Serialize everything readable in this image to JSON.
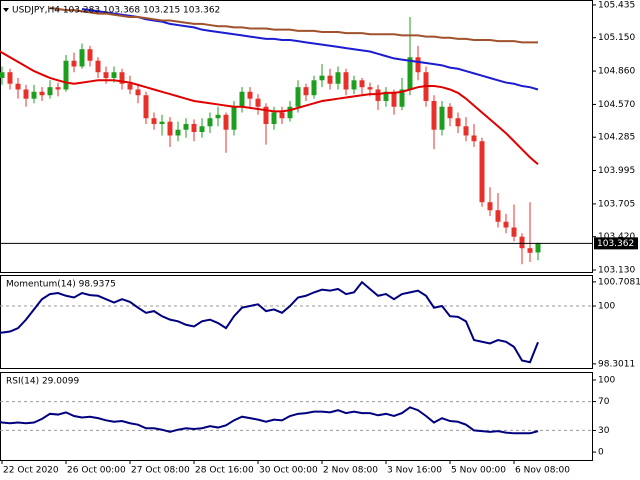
{
  "chart_data": [
    {
      "type": "candlestick",
      "title": "USDJPY,H4  103.283 103.368 103.215 103.362",
      "up_color": "#1e9e1e",
      "down_color": "#e8302a",
      "open": [
        104.55,
        104.72,
        104.8,
        104.85,
        104.75,
        104.7,
        104.62,
        104.68,
        104.65,
        104.72,
        104.7,
        104.95,
        104.9,
        105.05,
        104.95,
        104.85,
        104.8,
        104.85,
        104.75,
        104.7,
        104.65,
        104.45,
        104.4,
        104.42,
        104.3,
        104.35,
        104.4,
        104.33,
        104.38,
        104.45,
        104.48,
        104.35,
        104.55,
        104.68,
        104.62,
        104.55,
        104.4,
        104.5,
        104.45,
        104.55,
        104.72,
        104.65,
        104.78,
        104.82,
        104.75,
        104.85,
        104.7,
        104.78,
        104.72,
        104.7,
        104.6,
        104.68,
        104.55,
        104.7,
        104.98,
        104.85,
        104.6,
        104.35,
        104.55,
        104.45,
        104.38,
        104.3,
        104.25,
        103.72,
        103.65,
        103.55,
        103.5,
        103.42,
        103.32,
        103.283
      ],
      "high": [
        104.8,
        104.88,
        104.9,
        104.88,
        104.8,
        104.74,
        104.74,
        104.72,
        104.78,
        104.76,
        105.0,
        105.02,
        105.1,
        105.08,
        104.98,
        104.9,
        104.9,
        104.88,
        104.82,
        104.74,
        104.68,
        104.5,
        104.48,
        104.46,
        104.42,
        104.45,
        104.44,
        104.45,
        104.5,
        104.55,
        104.5,
        104.6,
        104.72,
        104.72,
        104.66,
        104.58,
        104.55,
        104.55,
        104.6,
        104.78,
        104.75,
        104.82,
        104.92,
        104.88,
        104.9,
        104.88,
        104.82,
        104.8,
        104.76,
        104.74,
        104.72,
        104.7,
        104.8,
        105.33,
        105.08,
        104.9,
        104.65,
        104.6,
        104.58,
        104.5,
        104.46,
        104.4,
        104.28,
        103.85,
        103.8,
        103.62,
        103.7,
        103.45,
        103.72,
        103.368
      ],
      "low": [
        104.5,
        104.68,
        104.74,
        104.7,
        104.62,
        104.55,
        104.58,
        104.6,
        104.62,
        104.64,
        104.68,
        104.85,
        104.88,
        104.9,
        104.8,
        104.75,
        104.76,
        104.7,
        104.66,
        104.58,
        104.4,
        104.35,
        104.3,
        104.2,
        104.25,
        104.28,
        104.25,
        104.28,
        104.32,
        104.38,
        104.15,
        104.3,
        104.5,
        104.55,
        104.48,
        104.22,
        104.35,
        104.4,
        104.42,
        104.5,
        104.6,
        104.62,
        104.72,
        104.7,
        104.7,
        104.65,
        104.66,
        104.66,
        104.64,
        104.52,
        104.55,
        104.48,
        104.52,
        104.65,
        104.78,
        104.55,
        104.18,
        104.3,
        104.38,
        104.32,
        104.25,
        104.2,
        103.68,
        103.6,
        103.5,
        103.45,
        103.38,
        103.18,
        103.2,
        103.215
      ],
      "close": [
        104.72,
        104.8,
        104.85,
        104.75,
        104.7,
        104.62,
        104.68,
        104.65,
        104.72,
        104.7,
        104.95,
        104.9,
        105.05,
        104.95,
        104.85,
        104.8,
        104.85,
        104.75,
        104.7,
        104.65,
        104.45,
        104.4,
        104.42,
        104.3,
        104.35,
        104.4,
        104.33,
        104.38,
        104.45,
        104.48,
        104.35,
        104.55,
        104.68,
        104.62,
        104.55,
        104.4,
        104.5,
        104.45,
        104.55,
        104.72,
        104.65,
        104.78,
        104.82,
        104.75,
        104.85,
        104.7,
        104.78,
        104.72,
        104.7,
        104.6,
        104.68,
        104.55,
        104.7,
        104.98,
        104.85,
        104.6,
        104.35,
        104.55,
        104.45,
        104.38,
        104.3,
        104.25,
        103.72,
        103.65,
        103.55,
        103.5,
        103.42,
        103.32,
        103.28,
        103.362
      ],
      "series": [
        {
          "color": "#e00000",
          "values": [
            105.1,
            105.06,
            105.02,
            104.98,
            104.94,
            104.9,
            104.86,
            104.83,
            104.8,
            104.78,
            104.76,
            104.75,
            104.76,
            104.77,
            104.78,
            104.78,
            104.78,
            104.77,
            104.76,
            104.74,
            104.72,
            104.7,
            104.68,
            104.66,
            104.64,
            104.62,
            104.6,
            104.59,
            104.58,
            104.57,
            104.56,
            104.55,
            104.55,
            104.54,
            104.53,
            104.52,
            104.51,
            104.51,
            104.52,
            104.54,
            104.56,
            104.58,
            104.6,
            104.61,
            104.62,
            104.63,
            104.64,
            104.65,
            104.66,
            104.66,
            104.67,
            104.67,
            104.68,
            104.7,
            104.72,
            104.73,
            104.73,
            104.72,
            104.7,
            104.67,
            104.62,
            104.56,
            104.5,
            104.44,
            104.38,
            104.32,
            104.25,
            104.18,
            104.11,
            104.05
          ]
        },
        {
          "color": "#1c1cd0",
          "values": [
            null,
            null,
            null,
            null,
            null,
            null,
            null,
            null,
            null,
            null,
            null,
            null,
            105.4,
            105.39,
            105.38,
            105.37,
            105.36,
            105.35,
            105.34,
            105.33,
            105.31,
            105.3,
            105.29,
            105.27,
            105.26,
            105.25,
            105.24,
            105.22,
            105.21,
            105.2,
            105.19,
            105.18,
            105.17,
            105.16,
            105.15,
            105.14,
            105.14,
            105.13,
            105.13,
            105.12,
            105.11,
            105.1,
            105.09,
            105.08,
            105.07,
            105.06,
            105.05,
            105.04,
            105.03,
            105.01,
            104.99,
            104.97,
            104.96,
            104.95,
            104.94,
            104.93,
            104.92,
            104.91,
            104.89,
            104.88,
            104.86,
            104.84,
            104.82,
            104.8,
            104.78,
            104.76,
            104.75,
            104.73,
            104.72,
            104.7
          ]
        },
        {
          "color": "#a0522d",
          "values": [
            null,
            null,
            null,
            null,
            null,
            null,
            null,
            null,
            105.41,
            105.4,
            105.39,
            105.39,
            105.38,
            105.37,
            105.36,
            105.36,
            105.35,
            105.34,
            105.33,
            105.33,
            105.32,
            105.31,
            105.3,
            105.3,
            105.29,
            105.28,
            105.27,
            105.27,
            105.26,
            105.25,
            105.25,
            105.24,
            105.24,
            105.23,
            105.23,
            105.23,
            105.22,
            105.22,
            105.22,
            105.21,
            105.21,
            105.21,
            105.2,
            105.2,
            105.2,
            105.19,
            105.19,
            105.19,
            105.18,
            105.18,
            105.18,
            105.18,
            105.17,
            105.17,
            105.17,
            105.16,
            105.16,
            105.15,
            105.15,
            105.14,
            105.14,
            105.13,
            105.13,
            105.13,
            105.12,
            105.12,
            105.12,
            105.11,
            105.11,
            105.11
          ]
        }
      ],
      "current_price": 103.362,
      "ylim": [
        103.113,
        105.478
      ],
      "yticks": [
        105.435,
        {
          "value": 105.15,
          "label": "105.150"
        },
        {
          "value": 104.86,
          "label": "104.860"
        },
        {
          "value": 104.57,
          "label": "104.570"
        },
        104.285,
        103.995,
        103.705,
        {
          "value": 103.42,
          "label": "103.420"
        },
        {
          "value": 103.13,
          "label": "103.130"
        }
      ],
      "xticks": [
        {
          "value": 2,
          "label": "22 Oct 2020"
        },
        {
          "value": 10,
          "label": "26 Oct 00:00"
        },
        {
          "value": 18,
          "label": "27 Oct 08:00"
        },
        {
          "value": 26,
          "label": "28 Oct 16:00"
        },
        {
          "value": 34,
          "label": "30 Oct 00:00"
        },
        {
          "value": 42,
          "label": "2 Nov 08:00"
        },
        {
          "value": 50,
          "label": "3 Nov 16:00"
        },
        {
          "value": 58,
          "label": "5 Nov 00:00"
        },
        {
          "value": 66,
          "label": "6 Nov 08:00"
        }
      ]
    },
    {
      "type": "line",
      "title": "Momentum(14) 98.9375",
      "color": "#00007f",
      "values": [
        99.25,
        99.22,
        99.22,
        99.25,
        99.35,
        99.6,
        99.9,
        100.2,
        100.35,
        100.38,
        100.3,
        100.25,
        100.38,
        100.32,
        100.3,
        100.2,
        100.1,
        100.2,
        100.12,
        99.95,
        99.8,
        99.85,
        99.7,
        99.6,
        99.55,
        99.45,
        99.4,
        99.55,
        99.6,
        99.5,
        99.35,
        99.7,
        99.95,
        100.0,
        100.05,
        99.85,
        99.9,
        99.8,
        100.0,
        100.25,
        100.3,
        100.4,
        100.48,
        100.45,
        100.5,
        100.35,
        100.4,
        100.7,
        100.5,
        100.3,
        100.35,
        100.2,
        100.35,
        100.4,
        100.45,
        100.3,
        99.95,
        100.0,
        99.7,
        99.68,
        99.55,
        99.0,
        98.95,
        98.9,
        99.0,
        98.95,
        98.8,
        98.4,
        98.35,
        98.9375
      ],
      "ylim": [
        98.18,
        100.91
      ],
      "yticks": [
        100.7081,
        100,
        98.3011
      ],
      "levels": [
        100
      ]
    },
    {
      "type": "line",
      "title": "RSI(14) 29.0099",
      "color": "#00007f",
      "values": [
        43,
        44,
        41,
        40,
        41,
        40,
        41,
        46,
        53,
        52,
        55,
        50,
        48,
        49,
        47,
        44,
        42,
        43,
        40,
        38,
        33,
        33,
        31,
        28,
        31,
        33,
        32,
        33,
        36,
        34,
        37,
        44,
        49,
        47,
        45,
        42,
        45,
        44,
        50,
        53,
        54,
        56,
        56,
        55,
        58,
        54,
        56,
        54,
        54,
        51,
        53,
        50,
        54,
        62,
        58,
        50,
        41,
        47,
        43,
        42,
        38,
        30,
        29,
        28,
        29,
        27,
        26,
        26,
        26,
        29.0099
      ],
      "ylim": [
        -11,
        111
      ],
      "yticks": [
        100,
        70,
        30,
        0
      ],
      "levels": [
        70,
        30
      ]
    }
  ]
}
